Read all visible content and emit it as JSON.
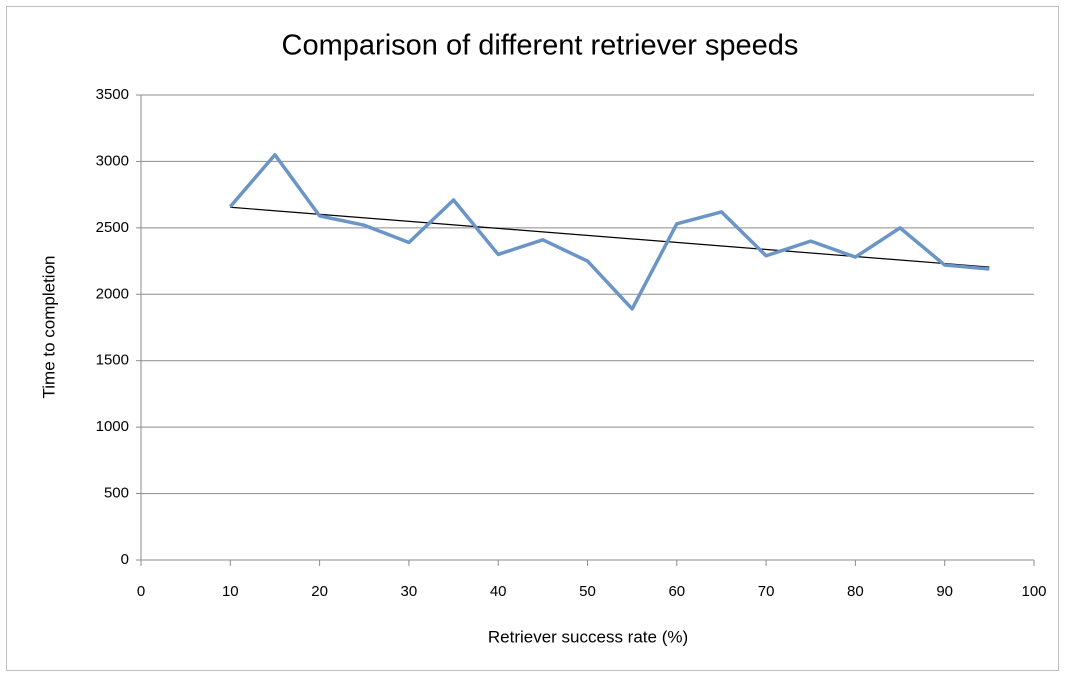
{
  "chart_data": {
    "type": "line",
    "title": "Comparison of different retriever speeds",
    "x_label": "Retriever success rate (%)",
    "y_label": "Time to completion",
    "x": [
      10,
      15,
      20,
      25,
      30,
      35,
      40,
      45,
      50,
      55,
      60,
      65,
      70,
      75,
      80,
      85,
      90,
      95
    ],
    "series": [
      {
        "color": "#6a95c6",
        "values": [
          2660,
          3050,
          2590,
          2520,
          2390,
          2710,
          2300,
          2410,
          2250,
          1890,
          2530,
          2620,
          2290,
          2400,
          2280,
          2500,
          2220,
          2190
        ]
      }
    ],
    "trendline": {
      "color": "#000000",
      "x": [
        10,
        95
      ],
      "values": [
        2655,
        2205
      ]
    },
    "xlim": [
      0,
      100
    ],
    "xticks": [
      0,
      10,
      20,
      30,
      40,
      50,
      60,
      70,
      80,
      90,
      100
    ],
    "ylim": [
      0,
      3500
    ],
    "yticks": [
      0,
      500,
      1000,
      1500,
      2000,
      2500,
      3000,
      3500
    ],
    "grid": true
  }
}
